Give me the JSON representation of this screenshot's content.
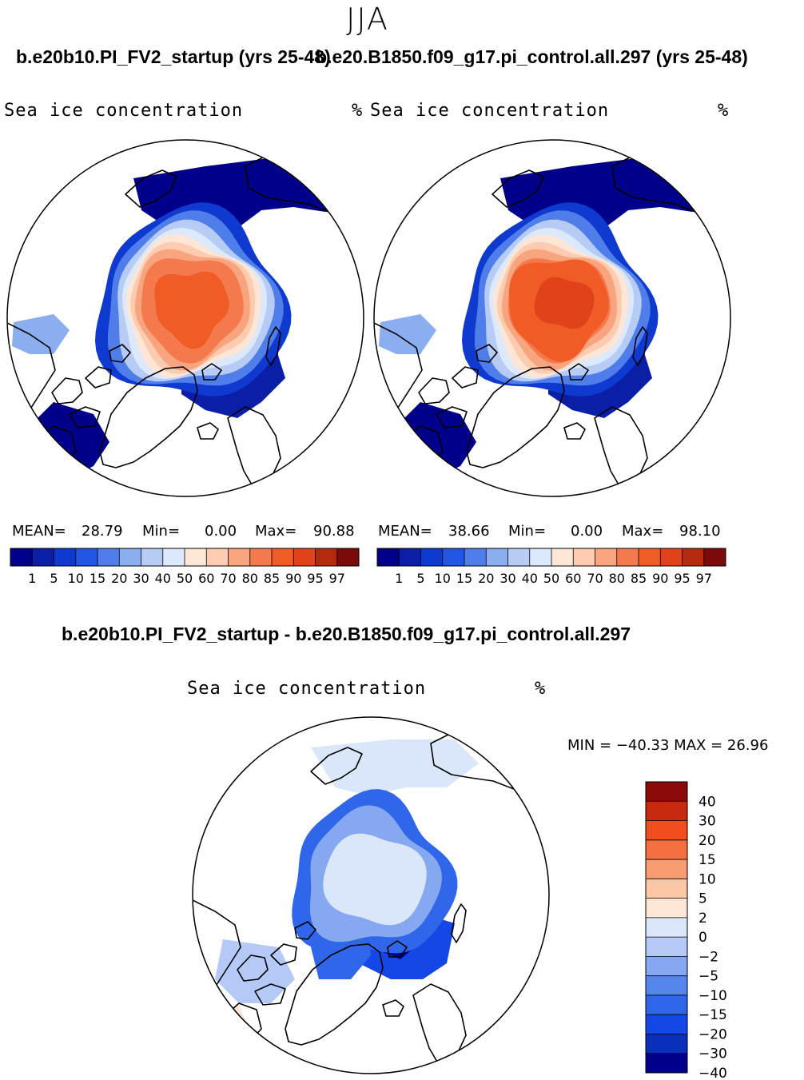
{
  "header": {
    "season": "JJA",
    "left_run_title": "b.e20b10.PI_FV2_startup (yrs 25-48)",
    "right_run_title": "b.e20.B1850.f09_g17.pi_control.all.297 (yrs 25-48)",
    "diff_title": "b.e20b10.PI_FV2_startup - b.e20.B1850.f09_g17.pi_control.all.297"
  },
  "colors": {
    "abs_scale": [
      "#00008b",
      "#0a1fa6",
      "#0f3ad0",
      "#2456e6",
      "#4f7eea",
      "#8aaef0",
      "#b6ccf5",
      "#dce8fb",
      "#fde6d6",
      "#fccbb0",
      "#f8a47e",
      "#f47a4e",
      "#f15b26",
      "#e0421a",
      "#b52a0e",
      "#7d0a0a"
    ],
    "diff_scale": [
      "#00008b",
      "#0a2fb8",
      "#1448e6",
      "#2f66ea",
      "#5586ec",
      "#86a8f0",
      "#b4c9f6",
      "#dae7fb",
      "#fde6d6",
      "#fcc7a6",
      "#f89c72",
      "#f47040",
      "#f04e1e",
      "#c82a0e",
      "#8b0a0a"
    ],
    "land_outline": "#000000"
  },
  "chart_data": [
    {
      "type": "polar-stereographic-map",
      "panel": "left",
      "title": "b.e20b10.PI_FV2_startup (yrs 25-48)",
      "field_label": "Sea ice concentration",
      "units": "%",
      "mean_label": "MEAN=",
      "mean": "28.79",
      "min_label": "Min=",
      "min": "0.00",
      "max_label": "Max=",
      "max": "90.88",
      "colorbar_ticks": [
        "1",
        "5",
        "10",
        "15",
        "20",
        "30",
        "40",
        "50",
        "60",
        "70",
        "80",
        "85",
        "90",
        "95",
        "97"
      ],
      "central_core_level": "80-85"
    },
    {
      "type": "polar-stereographic-map",
      "panel": "right",
      "title": "b.e20.B1850.f09_g17.pi_control.all.297 (yrs 25-48)",
      "field_label": "Sea ice concentration",
      "units": "%",
      "mean_label": "MEAN=",
      "mean": "38.66",
      "min_label": "Min=",
      "min": "0.00",
      "max_label": "Max=",
      "max": "98.10",
      "colorbar_ticks": [
        "1",
        "5",
        "10",
        "15",
        "20",
        "30",
        "40",
        "50",
        "60",
        "70",
        "80",
        "85",
        "90",
        "95",
        "97"
      ],
      "central_core_level": "90-95"
    },
    {
      "type": "polar-stereographic-map",
      "panel": "difference",
      "title": "b.e20b10.PI_FV2_startup - b.e20.B1850.f09_g17.pi_control.all.297",
      "field_label": "Sea ice concentration",
      "units": "%",
      "minmax_label": "MIN = −40.33 MAX =   26.96",
      "min": -40.33,
      "max": 26.96,
      "colorbar_ticks": [
        "40",
        "30",
        "20",
        "15",
        "10",
        "5",
        "2",
        "0",
        "−2",
        "−5",
        "−10",
        "−15",
        "−20",
        "−30",
        "−40"
      ]
    }
  ]
}
